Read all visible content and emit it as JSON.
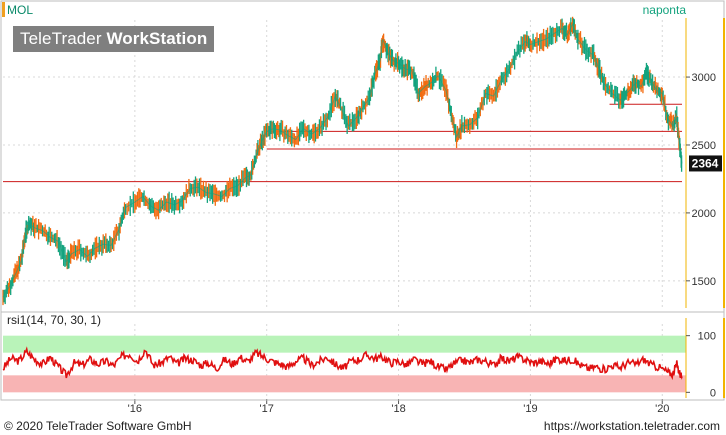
{
  "header": {
    "symbol": "MOL",
    "period": "naponta",
    "brand_regular": "TeleTrader ",
    "brand_bold": "WorkStation"
  },
  "footer": {
    "copyright": "© 2020 TeleTrader Software GmbH",
    "url": "https://workstation.teletrader.com"
  },
  "colors": {
    "up": "#13a37e",
    "down": "#f26b10",
    "hline": "#cc1a1a",
    "rsi_line": "#e01010",
    "rsi_upper_band": "#b9f3b9",
    "rsi_lower_band": "#f8b4b4",
    "grid": "#d8d8d8",
    "axis_edge": "#f2b400"
  },
  "chart_data": [
    {
      "type": "line",
      "name": "price",
      "x_axis": {
        "ticks": [
          "'16",
          "'17",
          "'18",
          "'19",
          "'20"
        ],
        "tick_dates": [
          2016.0,
          2017.0,
          2018.0,
          2019.0,
          2020.0
        ],
        "range": [
          2015.0,
          2020.18
        ]
      },
      "y_axis": {
        "ticks": [
          1500,
          2000,
          2500,
          3000
        ],
        "range": [
          1300,
          3420
        ]
      },
      "last_value": "2364",
      "horizontal_lines": [
        {
          "value": 2800,
          "from": 2019.6
        },
        {
          "value": 2600,
          "from": 2017.0
        },
        {
          "value": 2470,
          "from": 2017.0
        },
        {
          "value": 2230,
          "from": 2015.0
        }
      ],
      "points": [
        [
          2015.0,
          1380
        ],
        [
          2015.05,
          1460
        ],
        [
          2015.1,
          1560
        ],
        [
          2015.14,
          1650
        ],
        [
          2015.17,
          1850
        ],
        [
          2015.2,
          1920
        ],
        [
          2015.24,
          1890
        ],
        [
          2015.3,
          1870
        ],
        [
          2015.36,
          1820
        ],
        [
          2015.42,
          1790
        ],
        [
          2015.48,
          1640
        ],
        [
          2015.52,
          1700
        ],
        [
          2015.58,
          1730
        ],
        [
          2015.64,
          1680
        ],
        [
          2015.7,
          1740
        ],
        [
          2015.76,
          1770
        ],
        [
          2015.82,
          1760
        ],
        [
          2015.88,
          1880
        ],
        [
          2015.93,
          2040
        ],
        [
          2016.0,
          2080
        ],
        [
          2016.06,
          2120
        ],
        [
          2016.12,
          2050
        ],
        [
          2016.18,
          2020
        ],
        [
          2016.24,
          2080
        ],
        [
          2016.3,
          2060
        ],
        [
          2016.36,
          2090
        ],
        [
          2016.42,
          2180
        ],
        [
          2016.48,
          2190
        ],
        [
          2016.54,
          2150
        ],
        [
          2016.6,
          2140
        ],
        [
          2016.66,
          2120
        ],
        [
          2016.72,
          2180
        ],
        [
          2016.78,
          2200
        ],
        [
          2016.84,
          2260
        ],
        [
          2016.88,
          2280
        ],
        [
          2016.92,
          2420
        ],
        [
          2016.96,
          2520
        ],
        [
          2017.0,
          2600
        ],
        [
          2017.05,
          2620
        ],
        [
          2017.1,
          2610
        ],
        [
          2017.16,
          2570
        ],
        [
          2017.22,
          2540
        ],
        [
          2017.28,
          2620
        ],
        [
          2017.34,
          2580
        ],
        [
          2017.4,
          2620
        ],
        [
          2017.46,
          2700
        ],
        [
          2017.52,
          2860
        ],
        [
          2017.56,
          2780
        ],
        [
          2017.62,
          2640
        ],
        [
          2017.68,
          2700
        ],
        [
          2017.72,
          2760
        ],
        [
          2017.78,
          2850
        ],
        [
          2017.82,
          3020
        ],
        [
          2017.86,
          3120
        ],
        [
          2017.88,
          3280
        ],
        [
          2017.92,
          3180
        ],
        [
          2017.96,
          3120
        ],
        [
          2018.0,
          3100
        ],
        [
          2018.05,
          3060
        ],
        [
          2018.1,
          3050
        ],
        [
          2018.15,
          2880
        ],
        [
          2018.2,
          2930
        ],
        [
          2018.25,
          2960
        ],
        [
          2018.3,
          3010
        ],
        [
          2018.36,
          2900
        ],
        [
          2018.4,
          2720
        ],
        [
          2018.44,
          2560
        ],
        [
          2018.48,
          2640
        ],
        [
          2018.54,
          2650
        ],
        [
          2018.6,
          2700
        ],
        [
          2018.66,
          2880
        ],
        [
          2018.72,
          2860
        ],
        [
          2018.78,
          2980
        ],
        [
          2018.84,
          3060
        ],
        [
          2018.9,
          3180
        ],
        [
          2018.96,
          3260
        ],
        [
          2019.0,
          3240
        ],
        [
          2019.06,
          3260
        ],
        [
          2019.12,
          3280
        ],
        [
          2019.18,
          3320
        ],
        [
          2019.24,
          3360
        ],
        [
          2019.28,
          3310
        ],
        [
          2019.32,
          3390
        ],
        [
          2019.36,
          3280
        ],
        [
          2019.42,
          3200
        ],
        [
          2019.48,
          3160
        ],
        [
          2019.52,
          3060
        ],
        [
          2019.56,
          2950
        ],
        [
          2019.62,
          2880
        ],
        [
          2019.68,
          2830
        ],
        [
          2019.72,
          2870
        ],
        [
          2019.76,
          2910
        ],
        [
          2019.8,
          2960
        ],
        [
          2019.84,
          2930
        ],
        [
          2019.88,
          3030
        ],
        [
          2019.92,
          2960
        ],
        [
          2019.96,
          2900
        ],
        [
          2020.0,
          2880
        ],
        [
          2020.04,
          2700
        ],
        [
          2020.08,
          2640
        ],
        [
          2020.11,
          2700
        ],
        [
          2020.13,
          2500
        ],
        [
          2020.15,
          2364
        ]
      ]
    },
    {
      "type": "line",
      "name": "rsi",
      "title": "rsi1(14, 70, 30, 1)",
      "y_axis": {
        "ticks": [
          0,
          100
        ],
        "range": [
          -10,
          110
        ]
      },
      "bands": {
        "upper": [
          70,
          100
        ],
        "lower": [
          0,
          30
        ]
      },
      "points": [
        [
          2015.0,
          42
        ],
        [
          2015.06,
          60
        ],
        [
          2015.12,
          55
        ],
        [
          2015.18,
          72
        ],
        [
          2015.24,
          58
        ],
        [
          2015.3,
          50
        ],
        [
          2015.36,
          62
        ],
        [
          2015.42,
          45
        ],
        [
          2015.48,
          30
        ],
        [
          2015.54,
          52
        ],
        [
          2015.6,
          48
        ],
        [
          2015.66,
          58
        ],
        [
          2015.72,
          50
        ],
        [
          2015.78,
          55
        ],
        [
          2015.84,
          47
        ],
        [
          2015.9,
          63
        ],
        [
          2015.96,
          68
        ],
        [
          2016.02,
          55
        ],
        [
          2016.08,
          76
        ],
        [
          2016.14,
          48
        ],
        [
          2016.2,
          52
        ],
        [
          2016.26,
          62
        ],
        [
          2016.32,
          50
        ],
        [
          2016.38,
          60
        ],
        [
          2016.44,
          57
        ],
        [
          2016.5,
          48
        ],
        [
          2016.56,
          52
        ],
        [
          2016.62,
          42
        ],
        [
          2016.68,
          58
        ],
        [
          2016.74,
          50
        ],
        [
          2016.8,
          62
        ],
        [
          2016.86,
          54
        ],
        [
          2016.92,
          70
        ],
        [
          2016.98,
          62
        ],
        [
          2017.04,
          55
        ],
        [
          2017.1,
          50
        ],
        [
          2017.16,
          45
        ],
        [
          2017.22,
          55
        ],
        [
          2017.28,
          60
        ],
        [
          2017.34,
          48
        ],
        [
          2017.4,
          55
        ],
        [
          2017.46,
          62
        ],
        [
          2017.52,
          50
        ],
        [
          2017.58,
          42
        ],
        [
          2017.64,
          55
        ],
        [
          2017.7,
          58
        ],
        [
          2017.76,
          66
        ],
        [
          2017.82,
          60
        ],
        [
          2017.88,
          62
        ],
        [
          2017.94,
          52
        ],
        [
          2018.0,
          55
        ],
        [
          2018.06,
          48
        ],
        [
          2018.12,
          58
        ],
        [
          2018.18,
          50
        ],
        [
          2018.24,
          55
        ],
        [
          2018.3,
          45
        ],
        [
          2018.36,
          40
        ],
        [
          2018.42,
          50
        ],
        [
          2018.48,
          57
        ],
        [
          2018.54,
          52
        ],
        [
          2018.6,
          58
        ],
        [
          2018.66,
          55
        ],
        [
          2018.72,
          48
        ],
        [
          2018.78,
          60
        ],
        [
          2018.84,
          55
        ],
        [
          2018.9,
          62
        ],
        [
          2018.96,
          58
        ],
        [
          2019.02,
          52
        ],
        [
          2019.08,
          55
        ],
        [
          2019.14,
          50
        ],
        [
          2019.2,
          60
        ],
        [
          2019.26,
          56
        ],
        [
          2019.32,
          58
        ],
        [
          2019.38,
          48
        ],
        [
          2019.44,
          42
        ],
        [
          2019.5,
          45
        ],
        [
          2019.56,
          40
        ],
        [
          2019.62,
          48
        ],
        [
          2019.68,
          44
        ],
        [
          2019.74,
          52
        ],
        [
          2019.8,
          50
        ],
        [
          2019.86,
          58
        ],
        [
          2019.92,
          48
        ],
        [
          2019.98,
          44
        ],
        [
          2020.04,
          36
        ],
        [
          2020.08,
          32
        ],
        [
          2020.11,
          50
        ],
        [
          2020.13,
          35
        ],
        [
          2020.15,
          28
        ]
      ]
    }
  ]
}
